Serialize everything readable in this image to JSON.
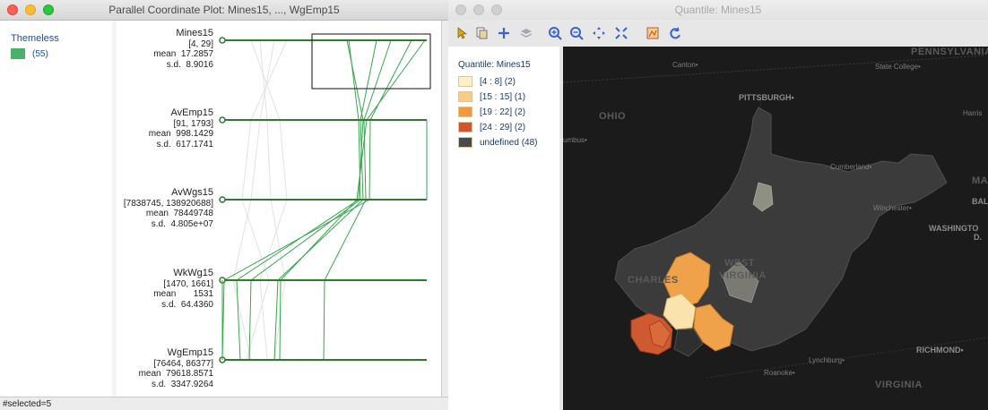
{
  "pcp_window": {
    "title": "Parallel Coordinate Plot: Mines15, ..., WgEmp15",
    "legend": {
      "title": "Themeless",
      "count": "(55)",
      "swatch_color": "#4caf6a"
    },
    "axes": [
      {
        "name": "Mines15",
        "range": "[4, 29]",
        "mean": "mean  17.2857",
        "sd": "s.d.  8.9016"
      },
      {
        "name": "AvEmp15",
        "range": "[91, 1793]",
        "mean": "mean  998.1429",
        "sd": "s.d.  617.1741"
      },
      {
        "name": "AvWgs15",
        "range": "[7838745, 138920688]",
        "mean": "mean  78449748",
        "sd": "s.d.  4.805e+07"
      },
      {
        "name": "WkWg15",
        "range": "[1470, 1661]",
        "mean": "mean       1531",
        "sd": "s.d.  64.4360"
      },
      {
        "name": "WgEmp15",
        "range": "[76464, 86377]",
        "mean": "mean  79618.8571",
        "sd": "s.d.  3347.9264"
      }
    ],
    "status": "#selected=5",
    "line_color": "#3aa54f"
  },
  "map_window": {
    "title": "Quantile: Mines15",
    "legend_title": "Quantile: Mines15",
    "legend_items": [
      {
        "label": "[4 : 8] (2)",
        "color": "#fdf0c8"
      },
      {
        "label": "[15 : 15] (1)",
        "color": "#f7cd86"
      },
      {
        "label": "[19 : 22] (2)",
        "color": "#ef9b3d"
      },
      {
        "label": "[24 : 29] (2)",
        "color": "#d2542b"
      },
      {
        "label": "undefined (48)",
        "color": "#4a4a4a"
      }
    ],
    "toolbar_icons": [
      "select-icon",
      "copy-icon",
      "add-icon",
      "layers-icon",
      "zoom-in-icon",
      "zoom-out-icon",
      "pan-icon",
      "fit-extent-icon",
      "basemap-icon",
      "refresh-icon"
    ],
    "places": {
      "pennsylvania": "PENNSYLVANIA",
      "state_college": "State College•",
      "canton": "Canton•",
      "pittsburgh": "PITTSBURGH•",
      "ohio": "OHIO",
      "harris": "Harris",
      "columbus": "umbus•",
      "cumberland": "Cumberland•",
      "winchester": "Winchester•",
      "ma": "MA",
      "bal": "BAL",
      "washington": "WASHINGTO",
      "d": "D.",
      "west_virginia_1": "WEST",
      "west_virginia_2": "VIRGINIA",
      "charleston": "CHARLES",
      "lynchburg": "Lynchburg•",
      "roanoke": "Roanoke•",
      "richmond": "RICHMOND•",
      "virginia": "VIRGINIA"
    }
  }
}
